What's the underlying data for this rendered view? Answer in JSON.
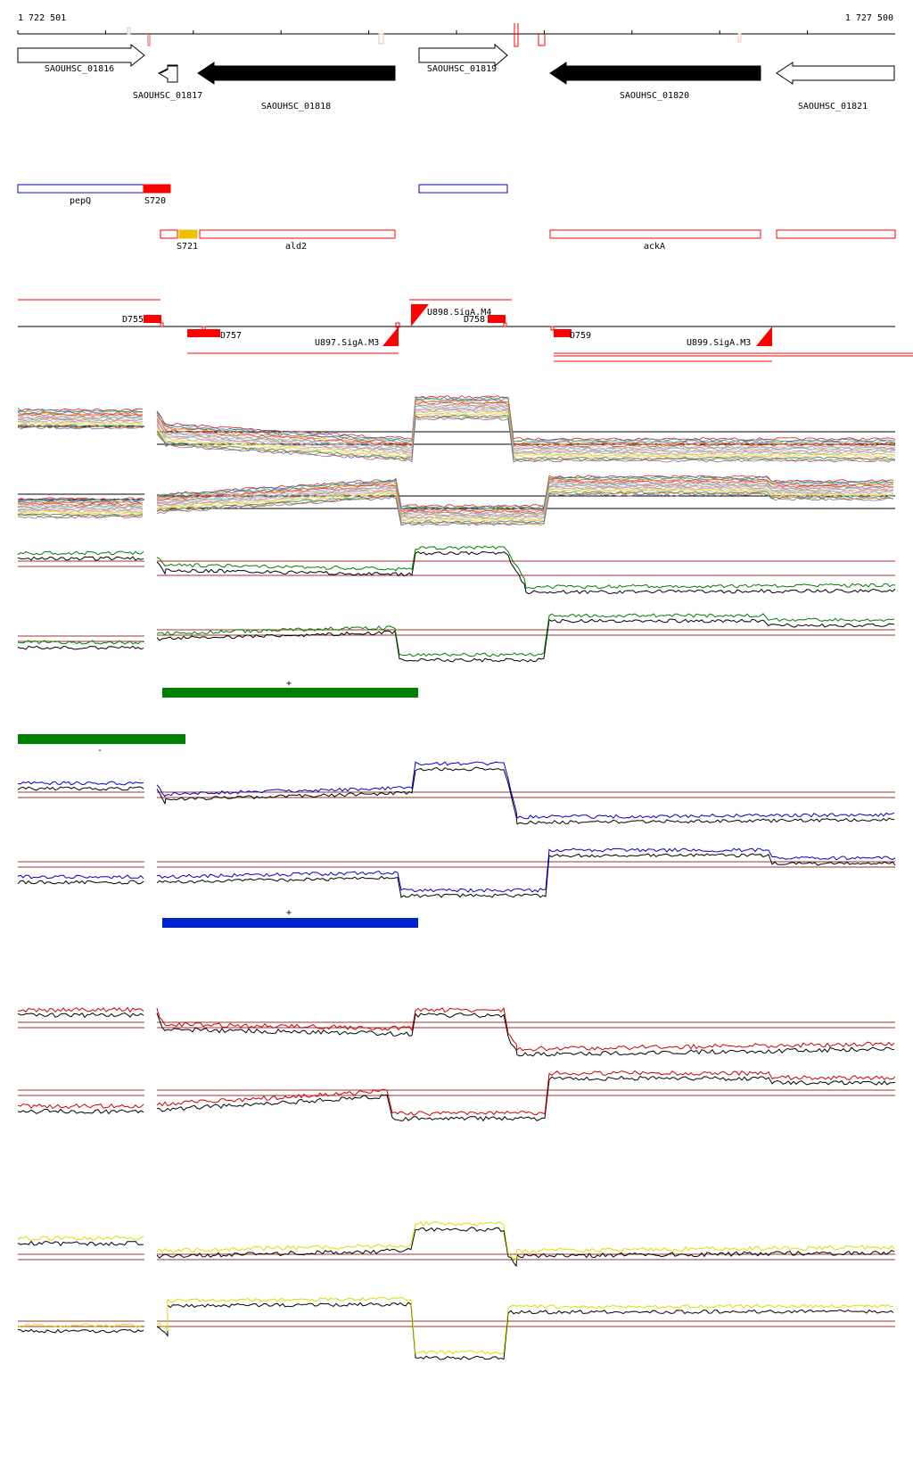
{
  "coords": {
    "start": "1 722 501",
    "end": "1 727 500"
  },
  "colors": {
    "red": "#ff0000",
    "blue": "#0000cc",
    "green": "#008000",
    "yellow": "#dddd00",
    "black": "#000000",
    "darkred": "#a03030",
    "orange": "#f0c000"
  },
  "genes": [
    {
      "id": "SAOUHSC_01816",
      "strand": "+",
      "fill": "white"
    },
    {
      "id": "SAOUHSC_01817",
      "strand": "-",
      "fill": "white"
    },
    {
      "id": "SAOUHSC_01818",
      "strand": "-",
      "fill": "black"
    },
    {
      "id": "SAOUHSC_01819",
      "strand": "+",
      "fill": "white"
    },
    {
      "id": "SAOUHSC_01820",
      "strand": "-",
      "fill": "black"
    },
    {
      "id": "SAOUHSC_01821",
      "strand": "-",
      "fill": "white"
    }
  ],
  "annotations_plus": [
    {
      "label": "pepQ"
    },
    {
      "label": "S720"
    }
  ],
  "annotations_minus": [
    {
      "label": "S721"
    },
    {
      "label": "ald2"
    },
    {
      "label": "ackA"
    }
  ],
  "segments": [
    {
      "label": "D755"
    },
    {
      "label": "D757"
    },
    {
      "label": "U897.SigA.M3"
    },
    {
      "label": "U898.SigA.M4"
    },
    {
      "label": "D758"
    },
    {
      "label": "D759"
    },
    {
      "label": "U899.SigA.M3"
    }
  ],
  "strand_marks": {
    "plus": "+",
    "minus": "-"
  },
  "profiles": [
    {
      "id": "all-conditions-plus",
      "color": "multi"
    },
    {
      "id": "all-conditions-minus",
      "color": "multi"
    },
    {
      "id": "green-plus",
      "color": "#008000"
    },
    {
      "id": "green-minus",
      "color": "#008000"
    },
    {
      "id": "blue-plus",
      "color": "#0000cc"
    },
    {
      "id": "blue-minus",
      "color": "#0000cc"
    },
    {
      "id": "red-plus",
      "color": "#cc0000"
    },
    {
      "id": "red-minus",
      "color": "#cc0000"
    },
    {
      "id": "yellow-plus",
      "color": "#dddd00"
    },
    {
      "id": "yellow-minus",
      "color": "#dddd00"
    }
  ]
}
